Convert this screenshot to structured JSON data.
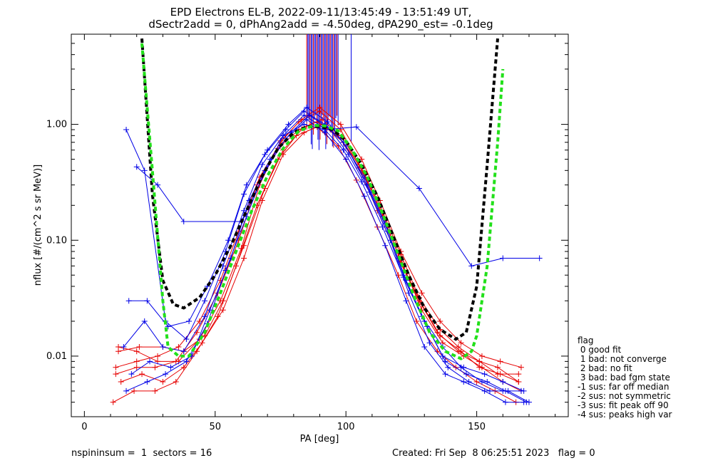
{
  "title_line1": "EPD Electrons EL-B, 2022-09-11/13:45:49 - 13:51:49 UT,",
  "title_line2": "dSectr2add = 0, dPhAng2add = -4.50deg, dPA290_est=  -0.1deg",
  "footer_left": "nspininsum =  1  sectors = 16",
  "footer_right": "Created: Fri Sep  8 06:25:51 2023   flag = 0",
  "legend": {
    "title": "flag",
    "items": [
      " 0 good fit",
      " 1 bad: not converge",
      " 2 bad: no fit",
      " 3 bad: bad fgm state",
      "-1 sus: far off median",
      "-2 sus: not symmetric",
      "-3 sus: fit peak off 90",
      "-4 sus: peaks high var"
    ]
  },
  "colors": {
    "series_red": "#e60000",
    "series_blue": "#0000e6",
    "fit_black": "#000000",
    "fit_green": "#22e01a"
  },
  "chart_data": {
    "type": "line",
    "xlabel": "PA [deg]",
    "ylabel": "nflux [#/(cm^2 s sr MeV)]",
    "xlim": [
      -5,
      185
    ],
    "ylim": [
      0.003,
      6.0
    ],
    "yscale": "log",
    "xticks": [
      0,
      50,
      100,
      150
    ],
    "xtick_labels": [
      "0",
      "50",
      "100",
      "150"
    ],
    "yticks": [
      0.01,
      0.1,
      1.0
    ],
    "ytick_labels": [
      "0.01",
      "0.10",
      "1.00"
    ],
    "series": [
      {
        "color": "red",
        "x": [
          13,
          21,
          30,
          38,
          46,
          53,
          61,
          69,
          76,
          84,
          91,
          99,
          106,
          114,
          121,
          129,
          136,
          144,
          151,
          159,
          166
        ],
        "y": [
          0.011,
          0.012,
          0.012,
          0.011,
          0.015,
          0.03,
          0.09,
          0.28,
          0.6,
          0.95,
          1.1,
          0.75,
          0.4,
          0.17,
          0.065,
          0.028,
          0.015,
          0.011,
          0.008,
          0.007,
          0.006
        ]
      },
      {
        "color": "red",
        "x": [
          12,
          20,
          28,
          36,
          44,
          52,
          59,
          67,
          75,
          82,
          90,
          98,
          105,
          113,
          121,
          128,
          136,
          143,
          151,
          158,
          166
        ],
        "y": [
          0.008,
          0.009,
          0.01,
          0.012,
          0.02,
          0.045,
          0.12,
          0.35,
          0.7,
          1.05,
          1.3,
          0.9,
          0.45,
          0.2,
          0.075,
          0.032,
          0.017,
          0.012,
          0.009,
          0.008,
          0.006
        ]
      },
      {
        "color": "red",
        "x": [
          14,
          22,
          30,
          38,
          45,
          53,
          61,
          68,
          76,
          84,
          91,
          99,
          107,
          114,
          122,
          129,
          137,
          145,
          152,
          160,
          167
        ],
        "y": [
          0.006,
          0.007,
          0.006,
          0.008,
          0.013,
          0.025,
          0.07,
          0.22,
          0.55,
          0.85,
          1.0,
          0.7,
          0.38,
          0.16,
          0.06,
          0.025,
          0.013,
          0.01,
          0.008,
          0.006,
          0.005
        ]
      },
      {
        "color": "red",
        "x": [
          11,
          19,
          27,
          35,
          43,
          51,
          58,
          66,
          74,
          81,
          89,
          97,
          104,
          112,
          120,
          127,
          135,
          142,
          150,
          157,
          165
        ],
        "y": [
          0.004,
          0.005,
          0.005,
          0.006,
          0.011,
          0.022,
          0.06,
          0.2,
          0.5,
          0.8,
          0.95,
          0.65,
          0.33,
          0.13,
          0.05,
          0.02,
          0.011,
          0.008,
          0.006,
          0.005,
          0.004
        ]
      },
      {
        "color": "red",
        "x": [
          13,
          20,
          28,
          36,
          44,
          52,
          60,
          67,
          75,
          83,
          90,
          98,
          106,
          113,
          121,
          129,
          136,
          144,
          152,
          159,
          167
        ],
        "y": [
          0.012,
          0.011,
          0.009,
          0.009,
          0.014,
          0.03,
          0.085,
          0.3,
          0.72,
          1.1,
          1.4,
          1.0,
          0.5,
          0.22,
          0.08,
          0.035,
          0.02,
          0.013,
          0.01,
          0.009,
          0.008
        ]
      },
      {
        "color": "red",
        "x": [
          12,
          20,
          27,
          35,
          43,
          51,
          59,
          66,
          74,
          82,
          89,
          97,
          105,
          112,
          120,
          128,
          135,
          143,
          151,
          158,
          166
        ],
        "y": [
          0.007,
          0.008,
          0.008,
          0.009,
          0.016,
          0.035,
          0.1,
          0.3,
          0.62,
          0.9,
          1.05,
          0.8,
          0.42,
          0.18,
          0.07,
          0.03,
          0.016,
          0.011,
          0.009,
          0.007,
          0.007
        ]
      },
      {
        "color": "blue",
        "x": [
          16,
          23,
          31,
          39,
          46,
          54,
          61,
          69,
          77,
          84,
          92,
          99,
          107,
          115,
          122,
          130,
          137,
          145,
          153,
          160,
          168
        ],
        "y": [
          0.9,
          0.4,
          0.02,
          0.014,
          0.03,
          0.08,
          0.25,
          0.55,
          0.9,
          1.3,
          1.0,
          0.7,
          0.35,
          0.14,
          0.05,
          0.02,
          0.01,
          0.008,
          0.007,
          0.006,
          0.005
        ]
      },
      {
        "color": "blue",
        "x": [
          17,
          24,
          32,
          40,
          47,
          55,
          62,
          70,
          78,
          85,
          93,
          100,
          108,
          116,
          123,
          131,
          138,
          146,
          154,
          161,
          169
        ],
        "y": [
          0.03,
          0.03,
          0.018,
          0.02,
          0.04,
          0.1,
          0.3,
          0.6,
          1.0,
          1.4,
          1.05,
          0.65,
          0.3,
          0.12,
          0.045,
          0.018,
          0.009,
          0.007,
          0.006,
          0.005,
          0.004
        ]
      },
      {
        "color": "blue",
        "x": [
          15,
          23,
          30,
          38,
          46,
          53,
          61,
          68,
          76,
          84,
          91,
          99,
          106,
          114,
          122,
          129,
          137,
          144,
          152,
          160,
          167
        ],
        "y": [
          0.012,
          0.02,
          0.012,
          0.011,
          0.022,
          0.06,
          0.18,
          0.45,
          0.8,
          1.2,
          0.95,
          0.6,
          0.32,
          0.13,
          0.048,
          0.022,
          0.012,
          0.008,
          0.006,
          0.005,
          0.005
        ]
      },
      {
        "color": "blue",
        "x": [
          18,
          25,
          33,
          41,
          48,
          56,
          63,
          71,
          79,
          86,
          94,
          101,
          109,
          117,
          124,
          132,
          139,
          147,
          155,
          162,
          170
        ],
        "y": [
          0.007,
          0.009,
          0.008,
          0.01,
          0.025,
          0.07,
          0.22,
          0.5,
          0.85,
          1.2,
          0.9,
          0.55,
          0.26,
          0.1,
          0.035,
          0.013,
          0.008,
          0.006,
          0.005,
          0.005,
          0.004
        ]
      },
      {
        "color": "blue",
        "x": [
          20,
          28,
          38,
          60,
          76,
          84,
          92,
          104,
          128,
          148,
          160,
          174
        ],
        "y": [
          0.43,
          0.3,
          0.145,
          0.145,
          0.8,
          1.0,
          0.9,
          0.95,
          0.28,
          0.06,
          0.07,
          0.07
        ]
      },
      {
        "color": "blue",
        "x": [
          16,
          24,
          31,
          39,
          47,
          54,
          62,
          69,
          77,
          85,
          92,
          100,
          107,
          115,
          123,
          130,
          138,
          145,
          153,
          161,
          168
        ],
        "y": [
          0.005,
          0.006,
          0.007,
          0.009,
          0.019,
          0.055,
          0.16,
          0.4,
          0.75,
          1.1,
          0.85,
          0.5,
          0.24,
          0.09,
          0.03,
          0.012,
          0.007,
          0.006,
          0.005,
          0.004,
          0.004
        ]
      }
    ],
    "fits": [
      {
        "color": "black",
        "x": [
          22,
          26,
          30,
          34,
          38,
          44,
          50,
          56,
          62,
          68,
          74,
          80,
          85,
          90,
          95,
          100,
          106,
          112,
          118,
          124,
          130,
          136,
          142,
          146,
          150,
          154,
          158
        ],
        "y": [
          5.5,
          0.25,
          0.045,
          0.028,
          0.026,
          0.032,
          0.05,
          0.09,
          0.18,
          0.36,
          0.62,
          0.85,
          0.95,
          0.96,
          0.9,
          0.72,
          0.45,
          0.24,
          0.11,
          0.05,
          0.026,
          0.017,
          0.014,
          0.016,
          0.04,
          0.45,
          5.5
        ]
      },
      {
        "color": "green",
        "x": [
          22,
          26,
          30,
          32,
          36,
          40,
          46,
          52,
          58,
          64,
          70,
          76,
          82,
          88,
          92,
          97,
          102,
          108,
          114,
          120,
          126,
          132,
          138,
          144,
          148,
          150,
          154,
          158,
          160
        ],
        "y": [
          5.0,
          0.4,
          0.03,
          0.012,
          0.01,
          0.01,
          0.016,
          0.035,
          0.08,
          0.18,
          0.36,
          0.62,
          0.88,
          0.98,
          0.97,
          0.88,
          0.62,
          0.36,
          0.17,
          0.075,
          0.033,
          0.016,
          0.011,
          0.0095,
          0.011,
          0.015,
          0.06,
          0.7,
          3.0
        ]
      }
    ],
    "spike_cluster": {
      "x_range": [
        85,
        97
      ],
      "note": "vertical lines reaching above plot top"
    }
  }
}
